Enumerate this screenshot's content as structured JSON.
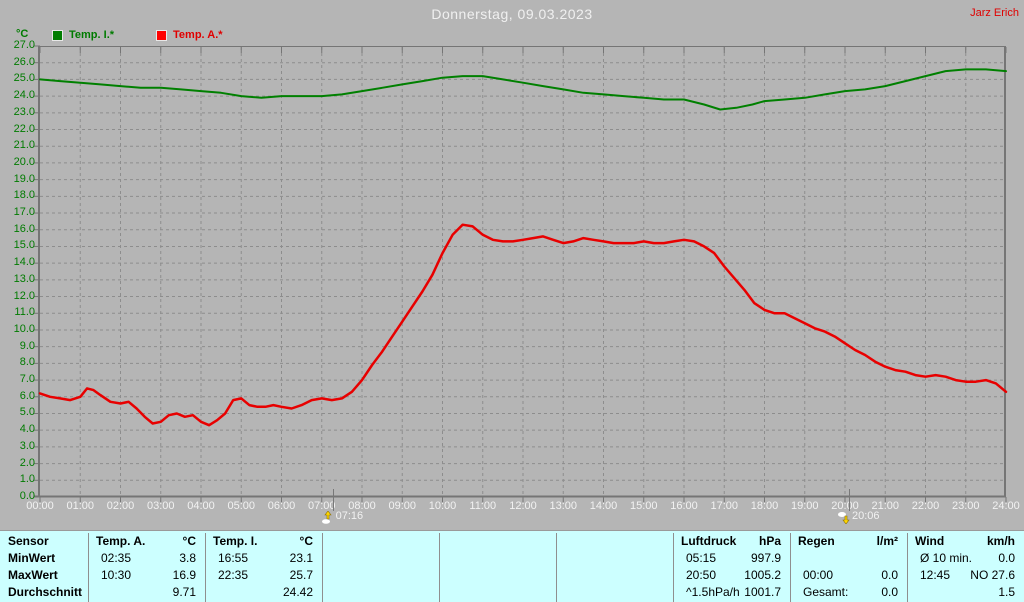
{
  "header": {
    "title": "Donnerstag, 09.03.2023",
    "user": "Jarz Erich"
  },
  "legend": {
    "unit": "°C",
    "items": [
      {
        "label": "Temp. I.*",
        "color": "#007d00",
        "text_color": "#007b00"
      },
      {
        "label": "Temp. A.*",
        "color": "#ff0000",
        "text_color": "#e00000"
      }
    ]
  },
  "chart_data": {
    "type": "line",
    "title": "Donnerstag, 09.03.2023",
    "xlabel": "",
    "ylabel": "°C",
    "ylim": [
      0,
      27
    ],
    "ytick_step": 1,
    "xlim_hours": [
      0,
      24
    ],
    "grid": true,
    "legend_position": "top-left",
    "x_tick_labels": [
      "00:00",
      "01:00",
      "02:00",
      "03:00",
      "04:00",
      "05:00",
      "06:00",
      "07:00",
      "08:00",
      "09:00",
      "10:00",
      "11:00",
      "12:00",
      "13:00",
      "14:00",
      "15:00",
      "16:00",
      "17:00",
      "18:00",
      "19:00",
      "20:00",
      "21:00",
      "22:00",
      "23:00",
      "24:00"
    ],
    "series": [
      {
        "name": "Temp. I.*",
        "color": "#008000",
        "width": 2,
        "points": [
          [
            0,
            25.0
          ],
          [
            0.5,
            24.9
          ],
          [
            1,
            24.8
          ],
          [
            1.5,
            24.7
          ],
          [
            2,
            24.6
          ],
          [
            2.5,
            24.5
          ],
          [
            3,
            24.5
          ],
          [
            3.5,
            24.4
          ],
          [
            4,
            24.3
          ],
          [
            4.5,
            24.2
          ],
          [
            5,
            24.0
          ],
          [
            5.5,
            23.9
          ],
          [
            6,
            24.0
          ],
          [
            6.5,
            24.0
          ],
          [
            7,
            24.0
          ],
          [
            7.5,
            24.1
          ],
          [
            8,
            24.3
          ],
          [
            8.5,
            24.5
          ],
          [
            9,
            24.7
          ],
          [
            9.5,
            24.9
          ],
          [
            10,
            25.1
          ],
          [
            10.5,
            25.2
          ],
          [
            11,
            25.2
          ],
          [
            11.5,
            25.0
          ],
          [
            12,
            24.8
          ],
          [
            12.5,
            24.6
          ],
          [
            13,
            24.4
          ],
          [
            13.5,
            24.2
          ],
          [
            14,
            24.1
          ],
          [
            14.5,
            24.0
          ],
          [
            15,
            23.9
          ],
          [
            15.5,
            23.8
          ],
          [
            16,
            23.8
          ],
          [
            16.5,
            23.5
          ],
          [
            16.9,
            23.2
          ],
          [
            17.3,
            23.3
          ],
          [
            17.7,
            23.5
          ],
          [
            18,
            23.7
          ],
          [
            18.5,
            23.8
          ],
          [
            19,
            23.9
          ],
          [
            19.5,
            24.1
          ],
          [
            20,
            24.3
          ],
          [
            20.5,
            24.4
          ],
          [
            21,
            24.6
          ],
          [
            21.5,
            24.9
          ],
          [
            22,
            25.2
          ],
          [
            22.5,
            25.5
          ],
          [
            23,
            25.6
          ],
          [
            23.5,
            25.6
          ],
          [
            24,
            25.5
          ]
        ]
      },
      {
        "name": "Temp. A.*",
        "color": "#e80000",
        "width": 2.5,
        "points": [
          [
            0,
            6.2
          ],
          [
            0.25,
            6.0
          ],
          [
            0.5,
            5.9
          ],
          [
            0.75,
            5.8
          ],
          [
            1,
            6.0
          ],
          [
            1.17,
            6.5
          ],
          [
            1.33,
            6.4
          ],
          [
            1.5,
            6.1
          ],
          [
            1.75,
            5.7
          ],
          [
            2,
            5.6
          ],
          [
            2.2,
            5.7
          ],
          [
            2.4,
            5.3
          ],
          [
            2.6,
            4.8
          ],
          [
            2.8,
            4.4
          ],
          [
            3,
            4.5
          ],
          [
            3.2,
            4.9
          ],
          [
            3.4,
            5.0
          ],
          [
            3.6,
            4.8
          ],
          [
            3.8,
            4.9
          ],
          [
            4,
            4.5
          ],
          [
            4.2,
            4.3
          ],
          [
            4.4,
            4.6
          ],
          [
            4.6,
            5.0
          ],
          [
            4.8,
            5.8
          ],
          [
            5,
            5.9
          ],
          [
            5.2,
            5.5
          ],
          [
            5.4,
            5.4
          ],
          [
            5.6,
            5.4
          ],
          [
            5.8,
            5.5
          ],
          [
            6,
            5.4
          ],
          [
            6.25,
            5.3
          ],
          [
            6.5,
            5.5
          ],
          [
            6.75,
            5.8
          ],
          [
            7,
            5.9
          ],
          [
            7.25,
            5.8
          ],
          [
            7.5,
            5.9
          ],
          [
            7.75,
            6.3
          ],
          [
            8,
            7.0
          ],
          [
            8.25,
            7.9
          ],
          [
            8.5,
            8.7
          ],
          [
            8.75,
            9.6
          ],
          [
            9,
            10.5
          ],
          [
            9.25,
            11.4
          ],
          [
            9.5,
            12.3
          ],
          [
            9.75,
            13.3
          ],
          [
            10,
            14.6
          ],
          [
            10.25,
            15.7
          ],
          [
            10.5,
            16.3
          ],
          [
            10.75,
            16.2
          ],
          [
            11,
            15.7
          ],
          [
            11.25,
            15.4
          ],
          [
            11.5,
            15.3
          ],
          [
            11.75,
            15.3
          ],
          [
            12,
            15.4
          ],
          [
            12.25,
            15.5
          ],
          [
            12.5,
            15.6
          ],
          [
            12.75,
            15.4
          ],
          [
            13,
            15.2
          ],
          [
            13.25,
            15.3
          ],
          [
            13.5,
            15.5
          ],
          [
            13.75,
            15.4
          ],
          [
            14,
            15.3
          ],
          [
            14.25,
            15.2
          ],
          [
            14.5,
            15.2
          ],
          [
            14.75,
            15.2
          ],
          [
            15,
            15.3
          ],
          [
            15.25,
            15.2
          ],
          [
            15.5,
            15.2
          ],
          [
            15.75,
            15.3
          ],
          [
            16,
            15.4
          ],
          [
            16.25,
            15.3
          ],
          [
            16.5,
            15.0
          ],
          [
            16.75,
            14.6
          ],
          [
            17,
            13.8
          ],
          [
            17.25,
            13.1
          ],
          [
            17.5,
            12.4
          ],
          [
            17.75,
            11.6
          ],
          [
            18,
            11.2
          ],
          [
            18.25,
            11.0
          ],
          [
            18.5,
            11.0
          ],
          [
            18.75,
            10.7
          ],
          [
            19,
            10.4
          ],
          [
            19.25,
            10.1
          ],
          [
            19.5,
            9.9
          ],
          [
            19.75,
            9.6
          ],
          [
            20,
            9.2
          ],
          [
            20.25,
            8.8
          ],
          [
            20.5,
            8.5
          ],
          [
            20.75,
            8.1
          ],
          [
            21,
            7.8
          ],
          [
            21.25,
            7.6
          ],
          [
            21.5,
            7.5
          ],
          [
            21.75,
            7.3
          ],
          [
            22,
            7.2
          ],
          [
            22.25,
            7.3
          ],
          [
            22.5,
            7.2
          ],
          [
            22.75,
            7.0
          ],
          [
            23,
            6.9
          ],
          [
            23.25,
            6.9
          ],
          [
            23.5,
            7.0
          ],
          [
            23.75,
            6.8
          ],
          [
            24,
            6.3
          ]
        ]
      }
    ],
    "annotations": [
      {
        "id": "sunrise",
        "time": "07:16",
        "hour": 7.27
      },
      {
        "id": "sunset",
        "time": "20:06",
        "hour": 20.1
      }
    ]
  },
  "summary_table": {
    "row_labels": [
      "Sensor",
      "MinWert",
      "MaxWert",
      "Durchschnitt"
    ],
    "columns": [
      {
        "name": "Temp. A.",
        "unit": "°C",
        "rows": [
          [
            "02:35",
            "3.8"
          ],
          [
            "10:30",
            "16.9"
          ],
          [
            "",
            "9.71"
          ]
        ]
      },
      {
        "name": "Temp. I.",
        "unit": "°C",
        "rows": [
          [
            "16:55",
            "23.1"
          ],
          [
            "22:35",
            "25.7"
          ],
          [
            "",
            "24.42"
          ]
        ]
      },
      {
        "name": "",
        "unit": "",
        "rows": [
          [
            "",
            ""
          ],
          [
            "",
            ""
          ],
          [
            "",
            ""
          ]
        ]
      },
      {
        "name": "",
        "unit": "",
        "rows": [
          [
            "",
            ""
          ],
          [
            "",
            ""
          ],
          [
            "",
            ""
          ]
        ]
      },
      {
        "name": "",
        "unit": "",
        "rows": [
          [
            "",
            ""
          ],
          [
            "",
            ""
          ],
          [
            "",
            ""
          ]
        ]
      },
      {
        "name": "Luftdruck",
        "unit": "hPa",
        "rows": [
          [
            "05:15",
            "997.9"
          ],
          [
            "20:50",
            "1005.2"
          ],
          [
            "^1.5hPa/h",
            "1001.7"
          ]
        ]
      },
      {
        "name": "Regen",
        "unit": "l/m²",
        "rows": [
          [
            "",
            ""
          ],
          [
            "00:00",
            "0.0"
          ],
          [
            "Gesamt:",
            "0.0"
          ]
        ]
      },
      {
        "name": "Wind",
        "unit": "km/h",
        "rows": [
          [
            "Ø 10 min.",
            "0.0"
          ],
          [
            "12:45",
            "NO 27.6"
          ],
          [
            "",
            "1.5"
          ]
        ]
      }
    ]
  },
  "colors": {
    "background": "#b5b5b5",
    "grid": "#8d8d8d",
    "axis": "#757575",
    "y_labels": "#007b00",
    "x_labels": "#f2f2f2",
    "title": "#f0f0f0",
    "user": "#e00000",
    "table_background": "#ccffff",
    "table_divider": "#8f8f8f"
  }
}
